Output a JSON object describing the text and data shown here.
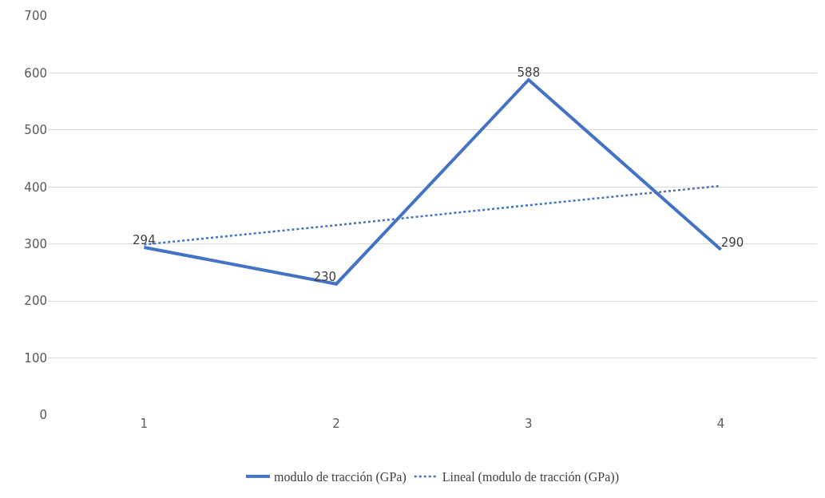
{
  "chart_data": {
    "type": "line",
    "categories": [
      "1",
      "2",
      "3",
      "4"
    ],
    "series": [
      {
        "name": "modulo de tracción (GPa)",
        "color": "#4472c4",
        "values": [
          294,
          230,
          588,
          290
        ],
        "value_labels": [
          "294",
          "230",
          "588",
          "290"
        ],
        "line_style": "solid"
      },
      {
        "name": "Lineal (modulo de tracción (GPa))",
        "color": "#4472c4",
        "values": [
          299,
          333,
          368,
          402
        ],
        "line_style": "dotted"
      }
    ],
    "ylim": [
      0,
      700
    ],
    "yticks": [
      0,
      100,
      200,
      300,
      400,
      500,
      600,
      700
    ],
    "grid": "y",
    "legend": "bottom",
    "marker": "none"
  }
}
